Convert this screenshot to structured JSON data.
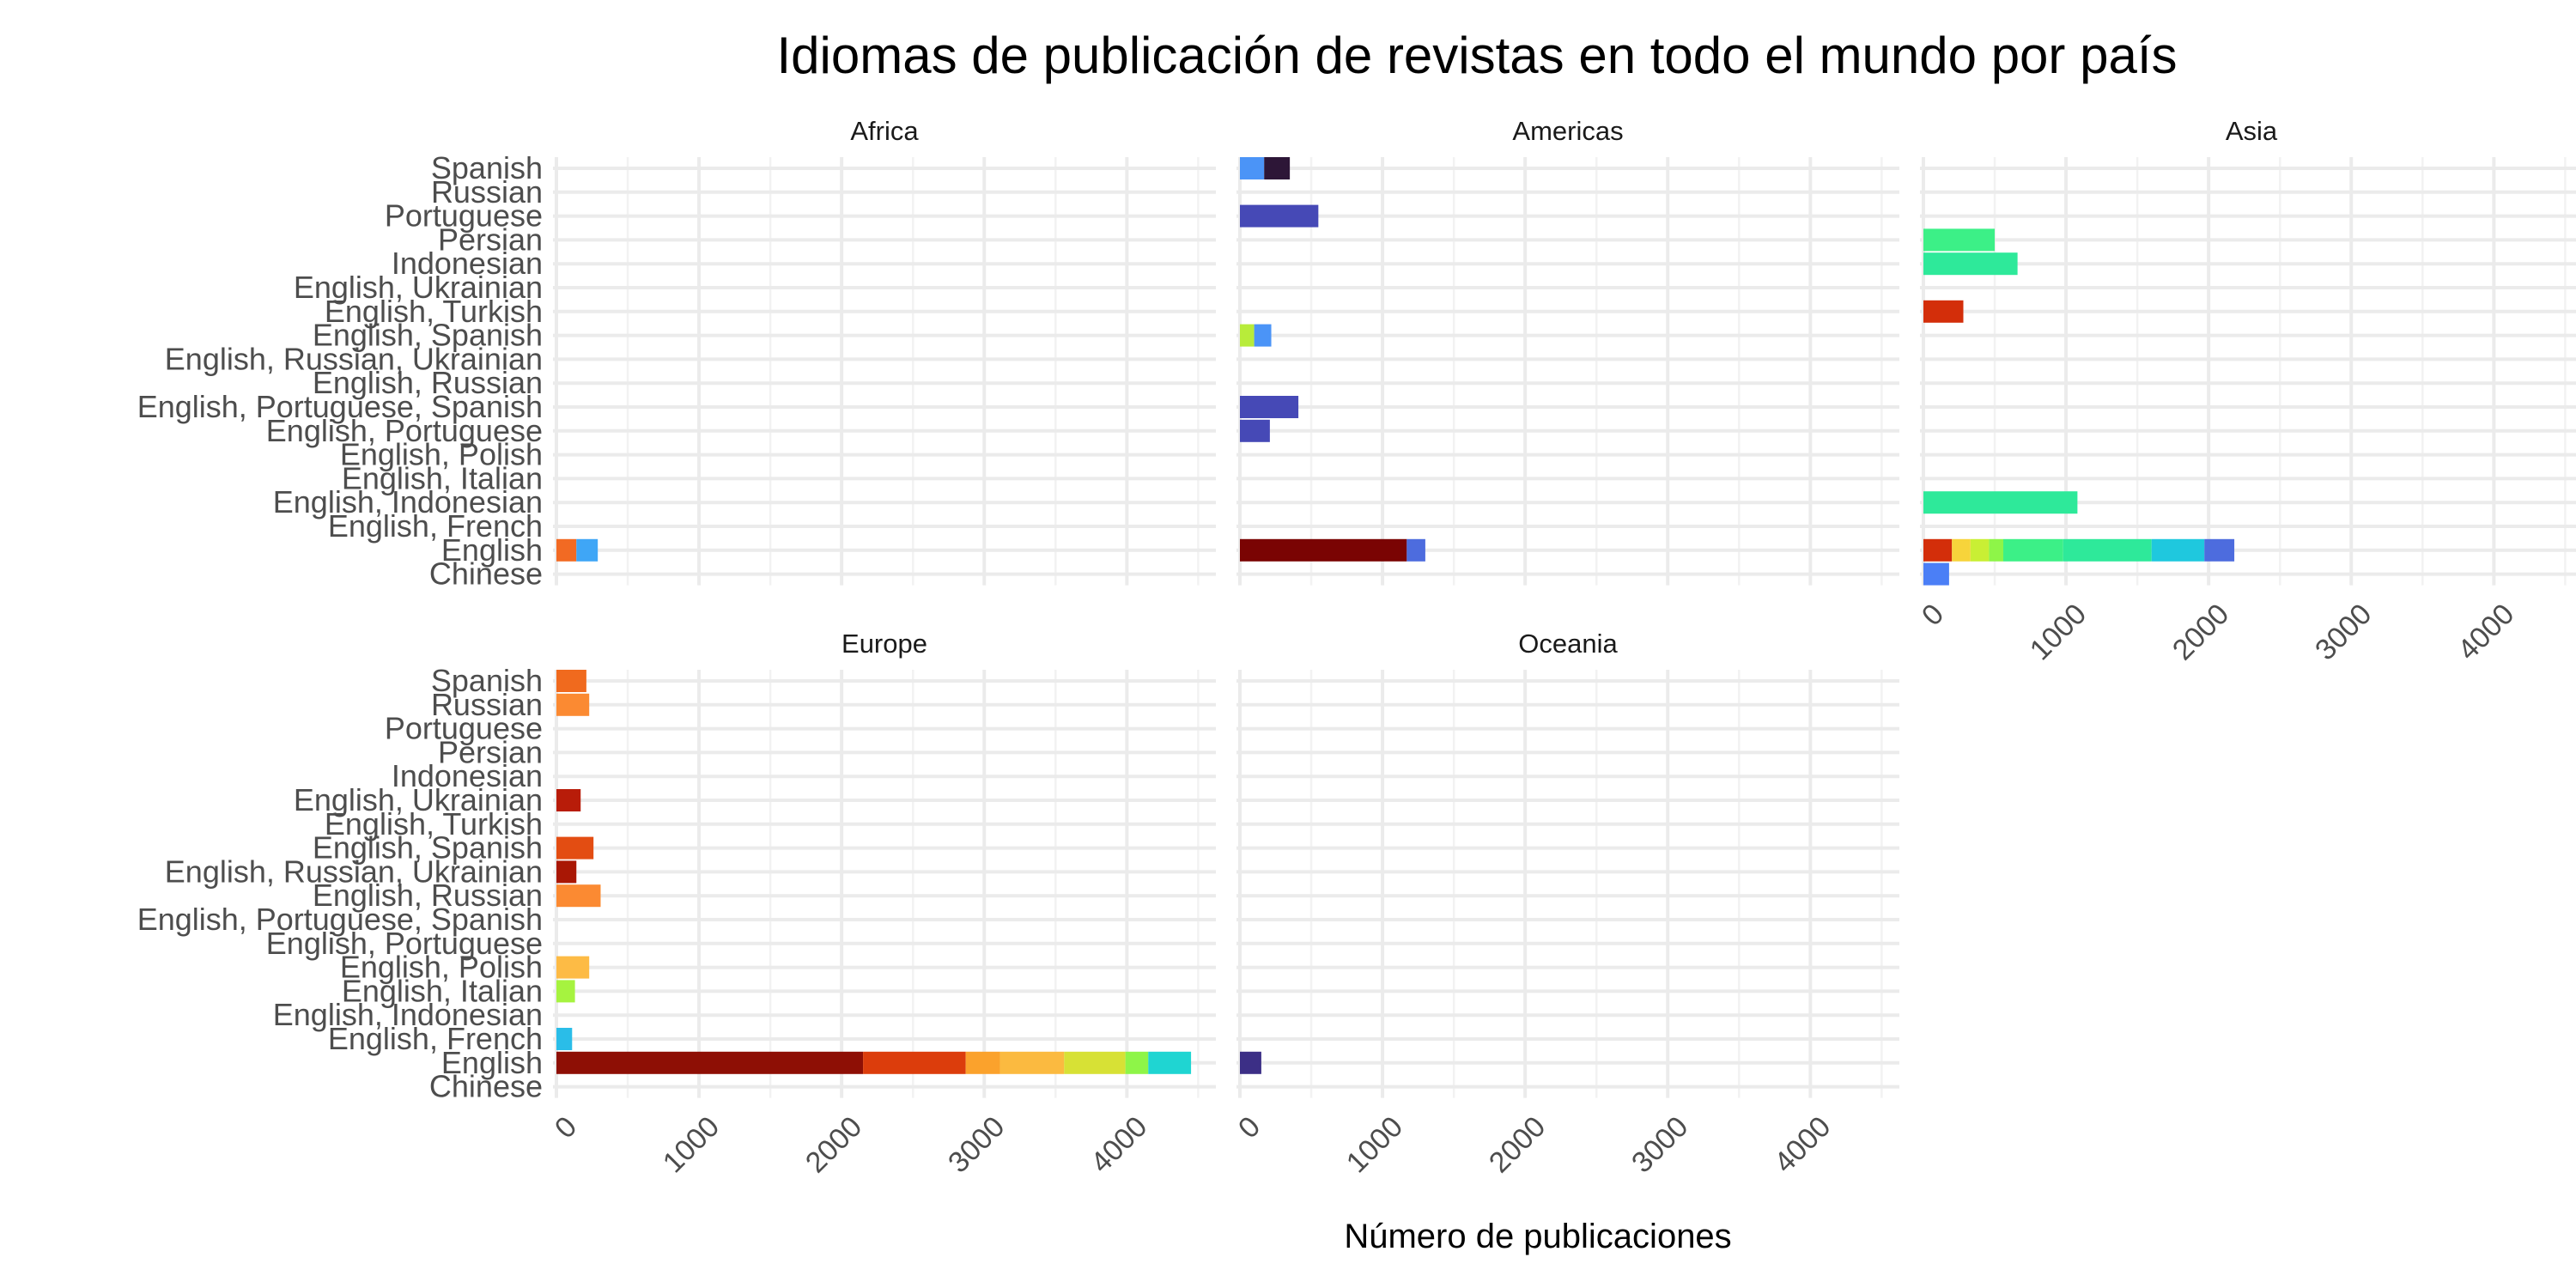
{
  "chart_data": {
    "type": "bar",
    "orientation": "horizontal",
    "stacked": true,
    "title": "Idiomas de publicación de revistas en todo el mundo por país",
    "xlabel": "Número de publicaciones",
    "ylabel": "",
    "xlim": [
      0,
      4600
    ],
    "x_ticks": [
      0,
      1000,
      2000,
      3000,
      4000
    ],
    "x_tick_labels": [
      "0",
      "1000",
      "2000",
      "3000",
      "4000"
    ],
    "grid": true,
    "legend": "none",
    "categories": [
      "Chinese",
      "English",
      "English, French",
      "English, Indonesian",
      "English, Italian",
      "English, Polish",
      "English, Portuguese",
      "English, Portuguese, Spanish",
      "English, Russian",
      "English, Russian, Ukrainian",
      "English, Spanish",
      "English, Turkish",
      "English, Ukrainian",
      "Indonesian",
      "Persian",
      "Portuguese",
      "Russian",
      "Spanish"
    ],
    "panels": [
      {
        "name": "Africa",
        "bars": [
          {
            "category": "English",
            "segments": [
              {
                "value": 140,
                "color": "#f26a23"
              },
              {
                "value": 150,
                "color": "#3fa6f6"
              }
            ]
          }
        ]
      },
      {
        "name": "Americas",
        "bars": [
          {
            "category": "Spanish",
            "segments": [
              {
                "value": 170,
                "color": "#4b94f7"
              },
              {
                "value": 180,
                "color": "#2d1637"
              }
            ]
          },
          {
            "category": "Portuguese",
            "segments": [
              {
                "value": 550,
                "color": "#4649b6"
              }
            ]
          },
          {
            "category": "English, Spanish",
            "segments": [
              {
                "value": 100,
                "color": "#b8ec3a"
              },
              {
                "value": 120,
                "color": "#4b94f7"
              }
            ]
          },
          {
            "category": "English, Portuguese, Spanish",
            "segments": [
              {
                "value": 410,
                "color": "#4649b6"
              }
            ]
          },
          {
            "category": "English, Portuguese",
            "segments": [
              {
                "value": 210,
                "color": "#4649b6"
              }
            ]
          },
          {
            "category": "English",
            "segments": [
              {
                "value": 1170,
                "color": "#7a0403"
              },
              {
                "value": 130,
                "color": "#4d6cde"
              }
            ]
          }
        ]
      },
      {
        "name": "Asia",
        "bars": [
          {
            "category": "Persian",
            "segments": [
              {
                "value": 500,
                "color": "#3cf087"
              }
            ]
          },
          {
            "category": "Indonesian",
            "segments": [
              {
                "value": 660,
                "color": "#2ee99a"
              }
            ]
          },
          {
            "category": "English, Turkish",
            "segments": [
              {
                "value": 280,
                "color": "#d32e0a"
              }
            ]
          },
          {
            "category": "English, Indonesian",
            "segments": [
              {
                "value": 1080,
                "color": "#2ee99a"
              }
            ]
          },
          {
            "category": "English",
            "segments": [
              {
                "value": 200,
                "color": "#d32e0a"
              },
              {
                "value": 130,
                "color": "#f7d43b"
              },
              {
                "value": 130,
                "color": "#c9ef34"
              },
              {
                "value": 100,
                "color": "#8ef548"
              },
              {
                "value": 420,
                "color": "#3cf087"
              },
              {
                "value": 620,
                "color": "#2ee99a"
              },
              {
                "value": 370,
                "color": "#1fc8de"
              },
              {
                "value": 210,
                "color": "#4d6cde"
              }
            ]
          },
          {
            "category": "Chinese",
            "segments": [
              {
                "value": 180,
                "color": "#4b7ff6"
              }
            ]
          }
        ]
      },
      {
        "name": "Europe",
        "bars": [
          {
            "category": "Spanish",
            "segments": [
              {
                "value": 210,
                "color": "#f06a1e"
              }
            ]
          },
          {
            "category": "Russian",
            "segments": [
              {
                "value": 230,
                "color": "#fb8a32"
              }
            ]
          },
          {
            "category": "English, Ukrainian",
            "segments": [
              {
                "value": 170,
                "color": "#b81c09"
              }
            ]
          },
          {
            "category": "English, Spanish",
            "segments": [
              {
                "value": 260,
                "color": "#e34d12"
              }
            ]
          },
          {
            "category": "English, Russian, Ukrainian",
            "segments": [
              {
                "value": 140,
                "color": "#a91705"
              }
            ]
          },
          {
            "category": "English, Russian",
            "segments": [
              {
                "value": 310,
                "color": "#fb8a32"
              }
            ]
          },
          {
            "category": "English, Polish",
            "segments": [
              {
                "value": 230,
                "color": "#fdbb45"
              }
            ]
          },
          {
            "category": "English, Italian",
            "segments": [
              {
                "value": 130,
                "color": "#a6f33f"
              }
            ]
          },
          {
            "category": "English, French",
            "segments": [
              {
                "value": 110,
                "color": "#2abde8"
              }
            ]
          },
          {
            "category": "English",
            "segments": [
              {
                "value": 2150,
                "color": "#8e0f05"
              },
              {
                "value": 720,
                "color": "#dc3d0c"
              },
              {
                "value": 240,
                "color": "#fba22c"
              },
              {
                "value": 450,
                "color": "#fbba40"
              },
              {
                "value": 430,
                "color": "#d7e135"
              },
              {
                "value": 160,
                "color": "#8ef548"
              },
              {
                "value": 300,
                "color": "#1fd5d2"
              }
            ]
          }
        ]
      },
      {
        "name": "Oceania",
        "bars": [
          {
            "category": "English",
            "segments": [
              {
                "value": 150,
                "color": "#3c2f86"
              }
            ]
          }
        ]
      }
    ]
  }
}
